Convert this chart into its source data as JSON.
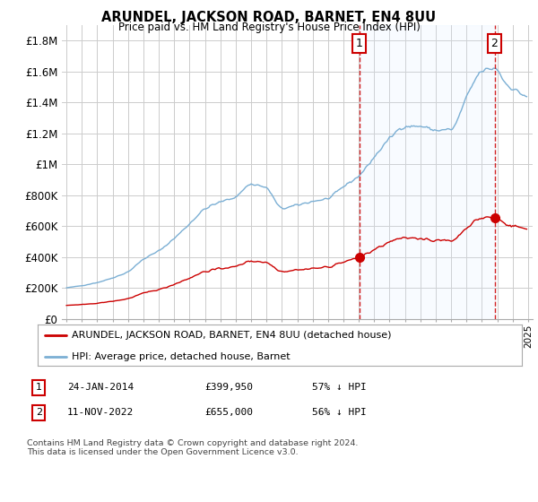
{
  "title": "ARUNDEL, JACKSON ROAD, BARNET, EN4 8UU",
  "subtitle": "Price paid vs. HM Land Registry's House Price Index (HPI)",
  "ylim": [
    0,
    1900000
  ],
  "yticks": [
    0,
    200000,
    400000,
    600000,
    800000,
    1000000,
    1200000,
    1400000,
    1600000,
    1800000
  ],
  "ytick_labels": [
    "£0",
    "£200K",
    "£400K",
    "£600K",
    "£800K",
    "£1M",
    "£1.2M",
    "£1.4M",
    "£1.6M",
    "£1.8M"
  ],
  "background_color": "#ffffff",
  "plot_bg_color": "#ffffff",
  "grid_color": "#cccccc",
  "legend_label_red": "ARUNDEL, JACKSON ROAD, BARNET, EN4 8UU (detached house)",
  "legend_label_blue": "HPI: Average price, detached house, Barnet",
  "annotation1_date": "24-JAN-2014",
  "annotation1_price": "£399,950",
  "annotation1_hpi": "57% ↓ HPI",
  "annotation2_date": "11-NOV-2022",
  "annotation2_price": "£655,000",
  "annotation2_hpi": "56% ↓ HPI",
  "footer": "Contains HM Land Registry data © Crown copyright and database right 2024.\nThis data is licensed under the Open Government Licence v3.0.",
  "red_color": "#cc0000",
  "blue_color": "#7bafd4",
  "fill_color": "#ddeeff",
  "vline_color": "#cc0000",
  "point1_x": 2014.07,
  "point1_y": 399950,
  "point2_x": 2022.87,
  "point2_y": 655000,
  "xlim_left": 1994.7,
  "xlim_right": 2025.3
}
